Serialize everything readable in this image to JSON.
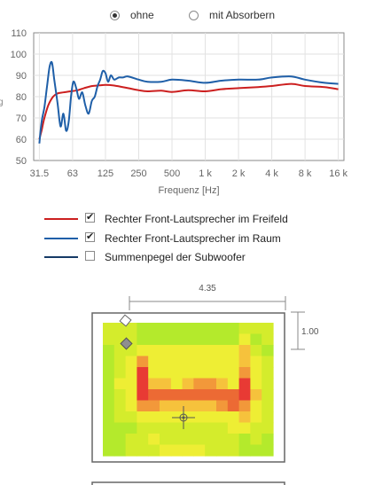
{
  "absorber_options": [
    {
      "label": "ohne",
      "selected": true
    },
    {
      "label": "mit Absorbern",
      "selected": false
    }
  ],
  "chart_data": {
    "type": "line",
    "xlabel": "Frequenz [Hz]",
    "x_scale": "log",
    "xlim": [
      28,
      18000
    ],
    "ylim": [
      50,
      110
    ],
    "xticks": [
      31.5,
      63,
      125,
      250,
      500,
      1000,
      2000,
      4000,
      8000,
      16000
    ],
    "xtick_labels": [
      "31.5",
      "63",
      "125",
      "250",
      "500",
      "1 k",
      "2 k",
      "4 k",
      "8 k",
      "16 k"
    ],
    "yticks": [
      50,
      60,
      70,
      80,
      90,
      100,
      110
    ],
    "grid": true,
    "series": [
      {
        "name": "Rechter Front-Lautsprecher im Freifeld",
        "color": "#cc1f1f",
        "x": [
          31.5,
          33,
          35,
          38,
          42,
          46,
          52,
          60,
          70,
          80,
          95,
          110,
          125,
          150,
          200,
          250,
          300,
          400,
          500,
          700,
          1000,
          1400,
          2000,
          3000,
          4000,
          6000,
          8000,
          12000,
          16000
        ],
        "y": [
          60,
          64,
          70,
          76,
          80,
          81.5,
          82,
          82.5,
          83,
          84,
          85,
          85.3,
          85.5,
          85.2,
          84,
          83,
          82.5,
          82.8,
          82.2,
          83,
          82.5,
          83.5,
          84,
          84.5,
          85,
          86,
          85,
          84.5,
          83.5
        ]
      },
      {
        "name": "Rechter Front-Lautsprecher im Raum",
        "color": "#1f5fa8",
        "x": [
          31.5,
          33,
          35,
          37,
          39,
          41,
          43,
          46,
          49,
          52,
          55,
          58,
          61,
          64,
          68,
          72,
          77,
          82,
          88,
          94,
          100,
          106,
          112,
          118,
          125,
          132,
          140,
          150,
          165,
          180,
          200,
          250,
          300,
          400,
          500,
          700,
          1000,
          1400,
          2000,
          3000,
          4000,
          6000,
          8000,
          12000,
          16000
        ],
        "y": [
          58,
          68,
          75,
          85,
          94,
          96,
          88,
          77,
          66,
          72,
          64,
          68,
          80,
          87,
          84,
          79,
          82,
          76,
          72,
          78,
          80,
          85,
          88,
          92,
          91,
          87,
          90,
          88,
          89,
          89,
          89.5,
          88,
          87,
          87,
          88,
          87.5,
          86.5,
          87.5,
          88,
          88,
          89,
          89.5,
          88,
          86.5,
          86
        ]
      }
    ]
  },
  "legend": [
    {
      "label": "Rechter Front-Lautsprecher im Freifeld",
      "color": "#cc1f1f",
      "checked": true,
      "checkmark": "✔"
    },
    {
      "label": "Rechter Front-Lautsprecher im Raum",
      "color": "#1f5fa8",
      "checked": true,
      "checkmark": "✔"
    },
    {
      "label": "Summenpegel der Subwoofer",
      "color": "#163a66",
      "checked": false,
      "checkmark": ""
    }
  ],
  "room_dimensions": {
    "width_label": "4.35",
    "distance_label": "1.00"
  },
  "room_heatmap": {
    "colors": {
      "1": "#b4ea2c",
      "2": "#d4ec2c",
      "3": "#eeee34",
      "4": "#f6c23c",
      "5": "#f2983a",
      "6": "#ec6a34",
      "7": "#e83a34"
    },
    "grid": [
      "222111111111222",
      "222111111111312",
      "122333333333421",
      "123533333333432",
      "123733333333532",
      "133744345543732",
      "123766666666742",
      "123554444456532",
      "122333333333432",
      "111222222223322",
      "112232222222121",
      "112223333222111"
    ]
  }
}
